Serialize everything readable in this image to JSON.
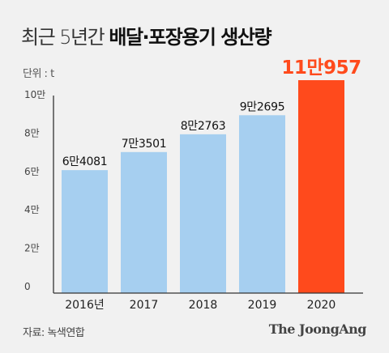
{
  "header": {
    "title_light": "최근 5년간",
    "title_bold": "배달·포장용기 생산량",
    "unit": "단위 : t"
  },
  "footer": {
    "source": "자료: 녹색연합",
    "logo": "The JoongAng"
  },
  "colors": {
    "bar": "#a6cff0",
    "highlight": "#ff4a1c",
    "axis": "#333333"
  },
  "chart_data": {
    "type": "bar",
    "categories": [
      "2016년",
      "2017",
      "2018",
      "2019",
      "2020"
    ],
    "values": [
      64081,
      73501,
      82763,
      92695,
      110957
    ],
    "data_labels": [
      "6만4081",
      "7만3501",
      "8만2763",
      "9만2695",
      "11만957"
    ],
    "highlight_index": 4,
    "ylim": [
      0,
      120000
    ],
    "yticks": [
      0,
      20000,
      40000,
      60000,
      80000,
      100000
    ],
    "ytick_labels": [
      "0",
      "2만",
      "4만",
      "6만",
      "8만",
      "10만"
    ],
    "grid": false
  }
}
